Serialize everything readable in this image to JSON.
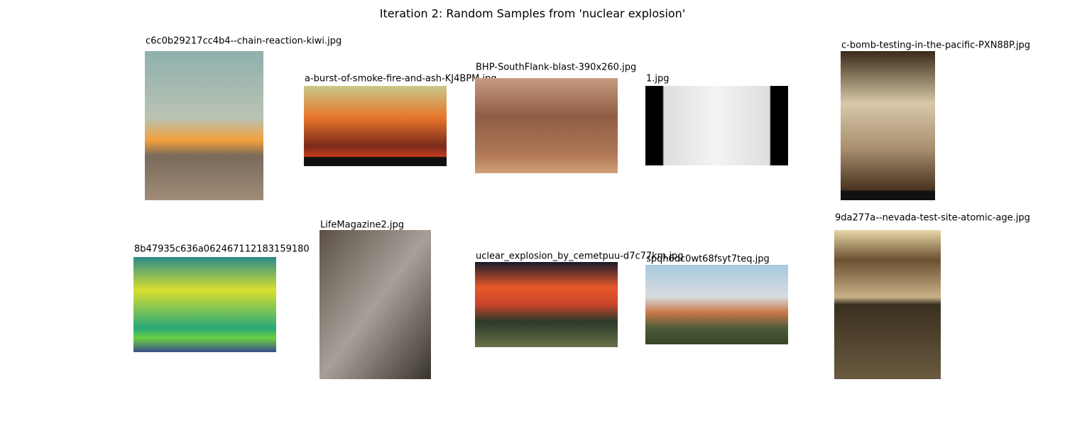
{
  "title": "Iteration 2: Random Samples from 'nuclear explosion'",
  "images": [
    {
      "caption": "c6c0b29217cc4b4--chain-reaction-kiwi.jpg"
    },
    {
      "caption": "a-burst-of-smoke-fire-and-ash-KJ4BPM.jpg"
    },
    {
      "caption": "BHP-SouthFlank-blast-390x260.jpg"
    },
    {
      "caption": "1.jpg"
    },
    {
      "caption": "c-bomb-testing-in-the-pacific-PXN88P.jpg"
    },
    {
      "caption": "8b47935c636a062467112183159180"
    },
    {
      "caption": "LifeMagazine2.jpg"
    },
    {
      "caption": "uclear_explosion_by_cemetpuu-d7c77km.jpg"
    },
    {
      "caption": "spqh6dc0wt68fsyt7teq.jpg"
    },
    {
      "caption": "9da277a--nevada-test-site-atomic-age.jpg"
    }
  ]
}
